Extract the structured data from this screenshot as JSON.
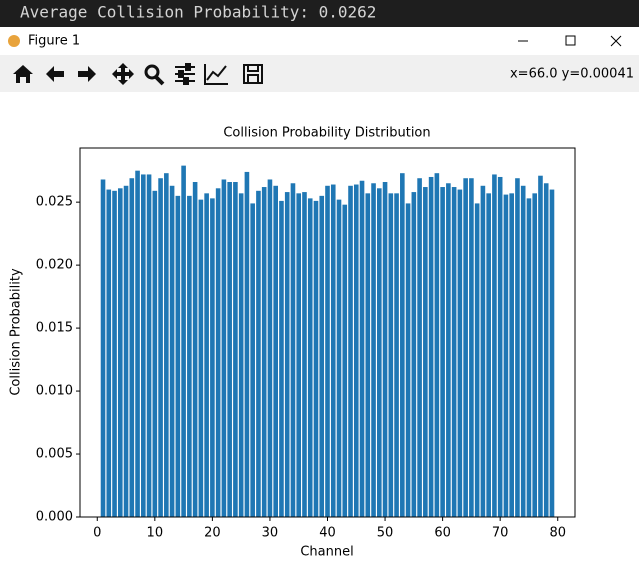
{
  "console": "Average Collision Probability: 0.0262",
  "window": {
    "title": "Figure 1",
    "status": "x=66.0 y=0.00041"
  },
  "chart_data": {
    "type": "bar",
    "title": "Collision Probability Distribution",
    "x_label": "Channel",
    "y_label": "Collision Probability",
    "color": "#1f77b4",
    "x": [
      1,
      2,
      3,
      4,
      5,
      6,
      7,
      8,
      9,
      10,
      11,
      12,
      13,
      14,
      15,
      16,
      17,
      18,
      19,
      20,
      21,
      22,
      23,
      24,
      25,
      26,
      27,
      28,
      29,
      30,
      31,
      32,
      33,
      34,
      35,
      36,
      37,
      38,
      39,
      40,
      41,
      42,
      43,
      44,
      45,
      46,
      47,
      48,
      49,
      50,
      51,
      52,
      53,
      54,
      55,
      56,
      57,
      58,
      59,
      60,
      61,
      62,
      63,
      64,
      65,
      66,
      67,
      68,
      69,
      70,
      71,
      72,
      73,
      74,
      75,
      76,
      77,
      78,
      79
    ],
    "values": [
      0.0268,
      0.026,
      0.0259,
      0.0261,
      0.0263,
      0.0269,
      0.0275,
      0.0272,
      0.0272,
      0.0259,
      0.0269,
      0.0273,
      0.0263,
      0.0255,
      0.0279,
      0.0255,
      0.0266,
      0.0252,
      0.0257,
      0.0253,
      0.0261,
      0.0268,
      0.0266,
      0.0266,
      0.0257,
      0.0274,
      0.0249,
      0.0259,
      0.0262,
      0.0268,
      0.0263,
      0.0251,
      0.0258,
      0.0265,
      0.0257,
      0.0258,
      0.0253,
      0.0251,
      0.0255,
      0.0263,
      0.0264,
      0.0252,
      0.0248,
      0.0263,
      0.0264,
      0.0267,
      0.0257,
      0.0265,
      0.0261,
      0.0266,
      0.0257,
      0.0257,
      0.0273,
      0.0249,
      0.0258,
      0.0269,
      0.0262,
      0.027,
      0.0273,
      0.0262,
      0.0265,
      0.0262,
      0.026,
      0.0269,
      0.0269,
      0.0249,
      0.0263,
      0.0257,
      0.0272,
      0.027,
      0.0256,
      0.0257,
      0.0269,
      0.0263,
      0.0253,
      0.0257,
      0.0271,
      0.0265,
      0.026
    ],
    "xlim": [
      -3,
      83
    ],
    "xticks": [
      0,
      10,
      20,
      30,
      40,
      50,
      60,
      70,
      80
    ],
    "ylim": [
      0,
      0.0293
    ],
    "yticks": [
      {
        "value": 0,
        "label": "0.000"
      },
      {
        "value": 0.005,
        "label": "0.005"
      },
      {
        "value": 0.01,
        "label": "0.010"
      },
      {
        "value": 0.015,
        "label": "0.015"
      },
      {
        "value": 0.02,
        "label": "0.020"
      },
      {
        "value": 0.025,
        "label": "0.025"
      }
    ]
  }
}
